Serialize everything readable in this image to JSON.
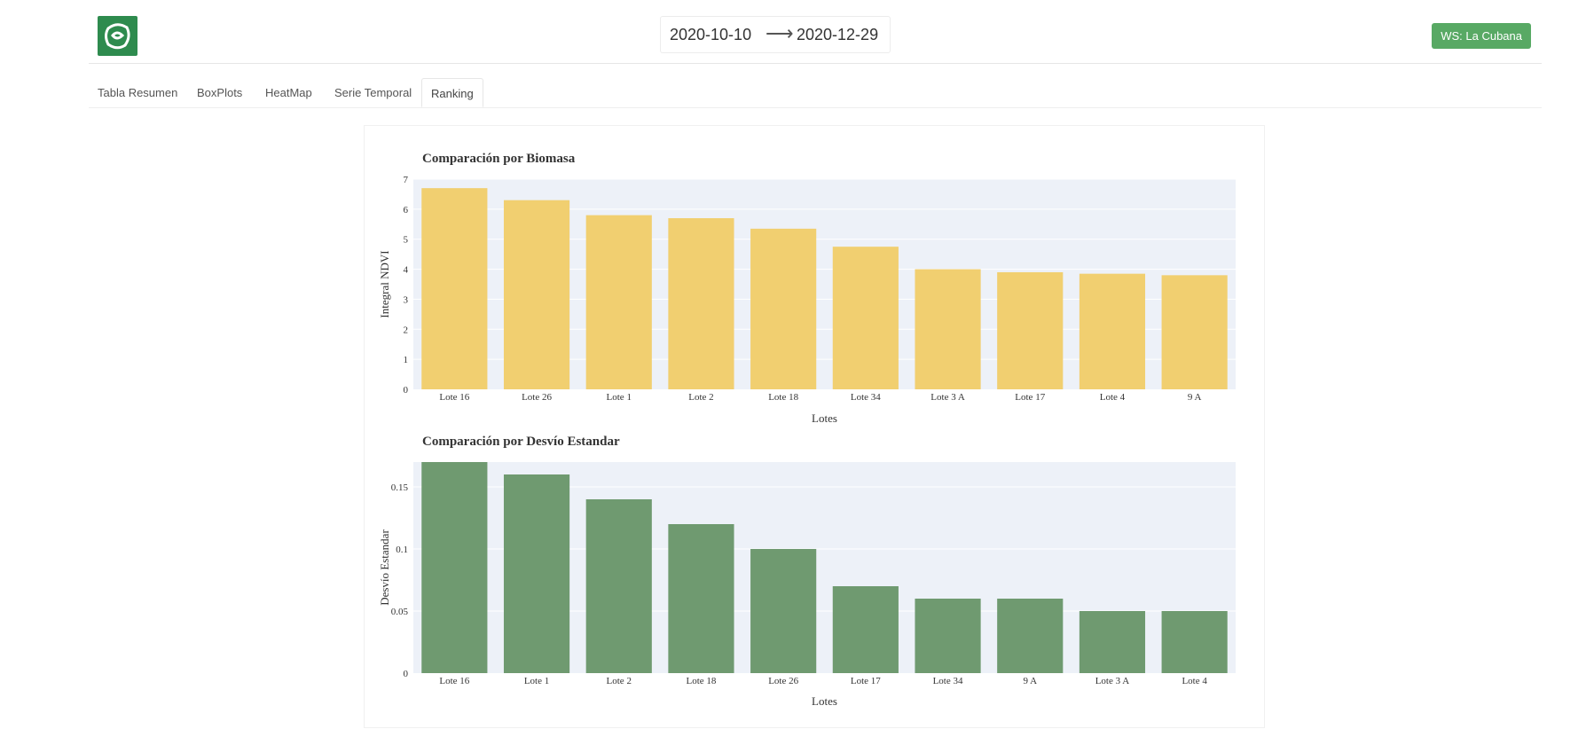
{
  "header": {
    "date_start": "2020-10-10",
    "date_arrow": "⟶",
    "date_end": "2020-12-29",
    "ws_button": "WS: La Cubana",
    "logo_icon": "leaf-logo-icon"
  },
  "tabs": [
    {
      "label": "Tabla Resumen"
    },
    {
      "label": "BoxPlots"
    },
    {
      "label": "HeatMap"
    },
    {
      "label": "Serie Temporal"
    },
    {
      "label": "Ranking",
      "active": true
    }
  ],
  "colors": {
    "biomasa_bar": "#f1cf70",
    "desvio_bar": "#6f9a70",
    "plot_bg": "#edf1f8",
    "accent": "#58a964"
  },
  "chart_data": [
    {
      "type": "bar",
      "title": "Comparación por Biomasa",
      "xlabel": "Lotes",
      "ylabel": "Integral NDVI",
      "ylim": [
        0,
        7
      ],
      "yticks": [
        0,
        1,
        2,
        3,
        4,
        5,
        6,
        7
      ],
      "ytick_labels": [
        "0",
        "1",
        "2",
        "3",
        "4",
        "5",
        "6",
        "7"
      ],
      "categories": [
        "Lote 16",
        "Lote 26",
        "Lote 1",
        "Lote 2",
        "Lote 18",
        "Lote 34",
        "Lote 3 A",
        "Lote 17",
        "Lote 4",
        "9 A"
      ],
      "values": [
        6.7,
        6.3,
        5.8,
        5.7,
        5.35,
        4.75,
        4.0,
        3.9,
        3.85,
        3.8
      ],
      "grid": true
    },
    {
      "type": "bar",
      "title": "Comparación por Desvío Estandar",
      "xlabel": "Lotes",
      "ylabel": "Desvío Estandar",
      "ylim": [
        0,
        0.17
      ],
      "yticks": [
        0,
        0.05,
        0.1,
        0.15
      ],
      "ytick_labels": [
        "0",
        "0.05",
        "0.1",
        "0.15"
      ],
      "categories": [
        "Lote 16",
        "Lote 1",
        "Lote 2",
        "Lote 18",
        "Lote 26",
        "Lote 17",
        "Lote 34",
        "9 A",
        "Lote 3 A",
        "Lote 4"
      ],
      "values": [
        0.17,
        0.16,
        0.14,
        0.12,
        0.1,
        0.07,
        0.06,
        0.06,
        0.05,
        0.05
      ],
      "grid": true
    }
  ]
}
